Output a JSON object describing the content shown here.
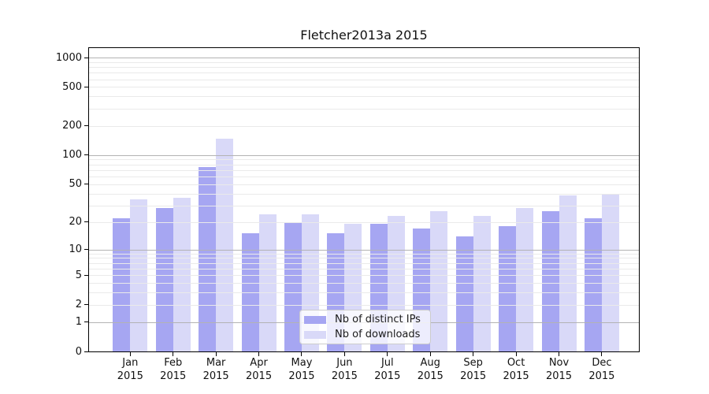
{
  "title": "Fletcher2013a 2015",
  "colors": {
    "dark_bar": "#a6a6f2",
    "light_bar": "#d9d9f8",
    "major_grid": "#b3b3b3",
    "minor_grid": "#eaeaea",
    "axis": "#000000",
    "legend_border": "#cccccc"
  },
  "legend": {
    "items": [
      {
        "label": "Nb of distinct IPs",
        "color": "#a6a6f2"
      },
      {
        "label": "Nb of downloads",
        "color": "#d9d9f8"
      }
    ]
  },
  "chart_data": {
    "type": "bar",
    "title": "Fletcher2013a 2015",
    "categories": [
      "Jan",
      "Feb",
      "Mar",
      "Apr",
      "May",
      "Jun",
      "Jul",
      "Aug",
      "Sep",
      "Oct",
      "Nov",
      "Dec"
    ],
    "year_label": "2015",
    "series": [
      {
        "name": "Nb of distinct IPs",
        "color": "#a6a6f2",
        "values": [
          22,
          28,
          76,
          15,
          20,
          15,
          19,
          17,
          14,
          18,
          26,
          22
        ]
      },
      {
        "name": "Nb of downloads",
        "color": "#d9d9f8",
        "values": [
          35,
          36,
          148,
          24,
          24,
          19,
          23,
          26,
          23,
          28,
          38,
          40
        ]
      }
    ],
    "xlabel": "",
    "ylabel": "",
    "yscale": "log10(1+y)",
    "yticks": [
      0,
      1,
      2,
      5,
      10,
      20,
      50,
      100,
      200,
      500,
      1000
    ],
    "ylim": [
      0,
      1250
    ],
    "grid": true,
    "legend_position": "lower center"
  }
}
